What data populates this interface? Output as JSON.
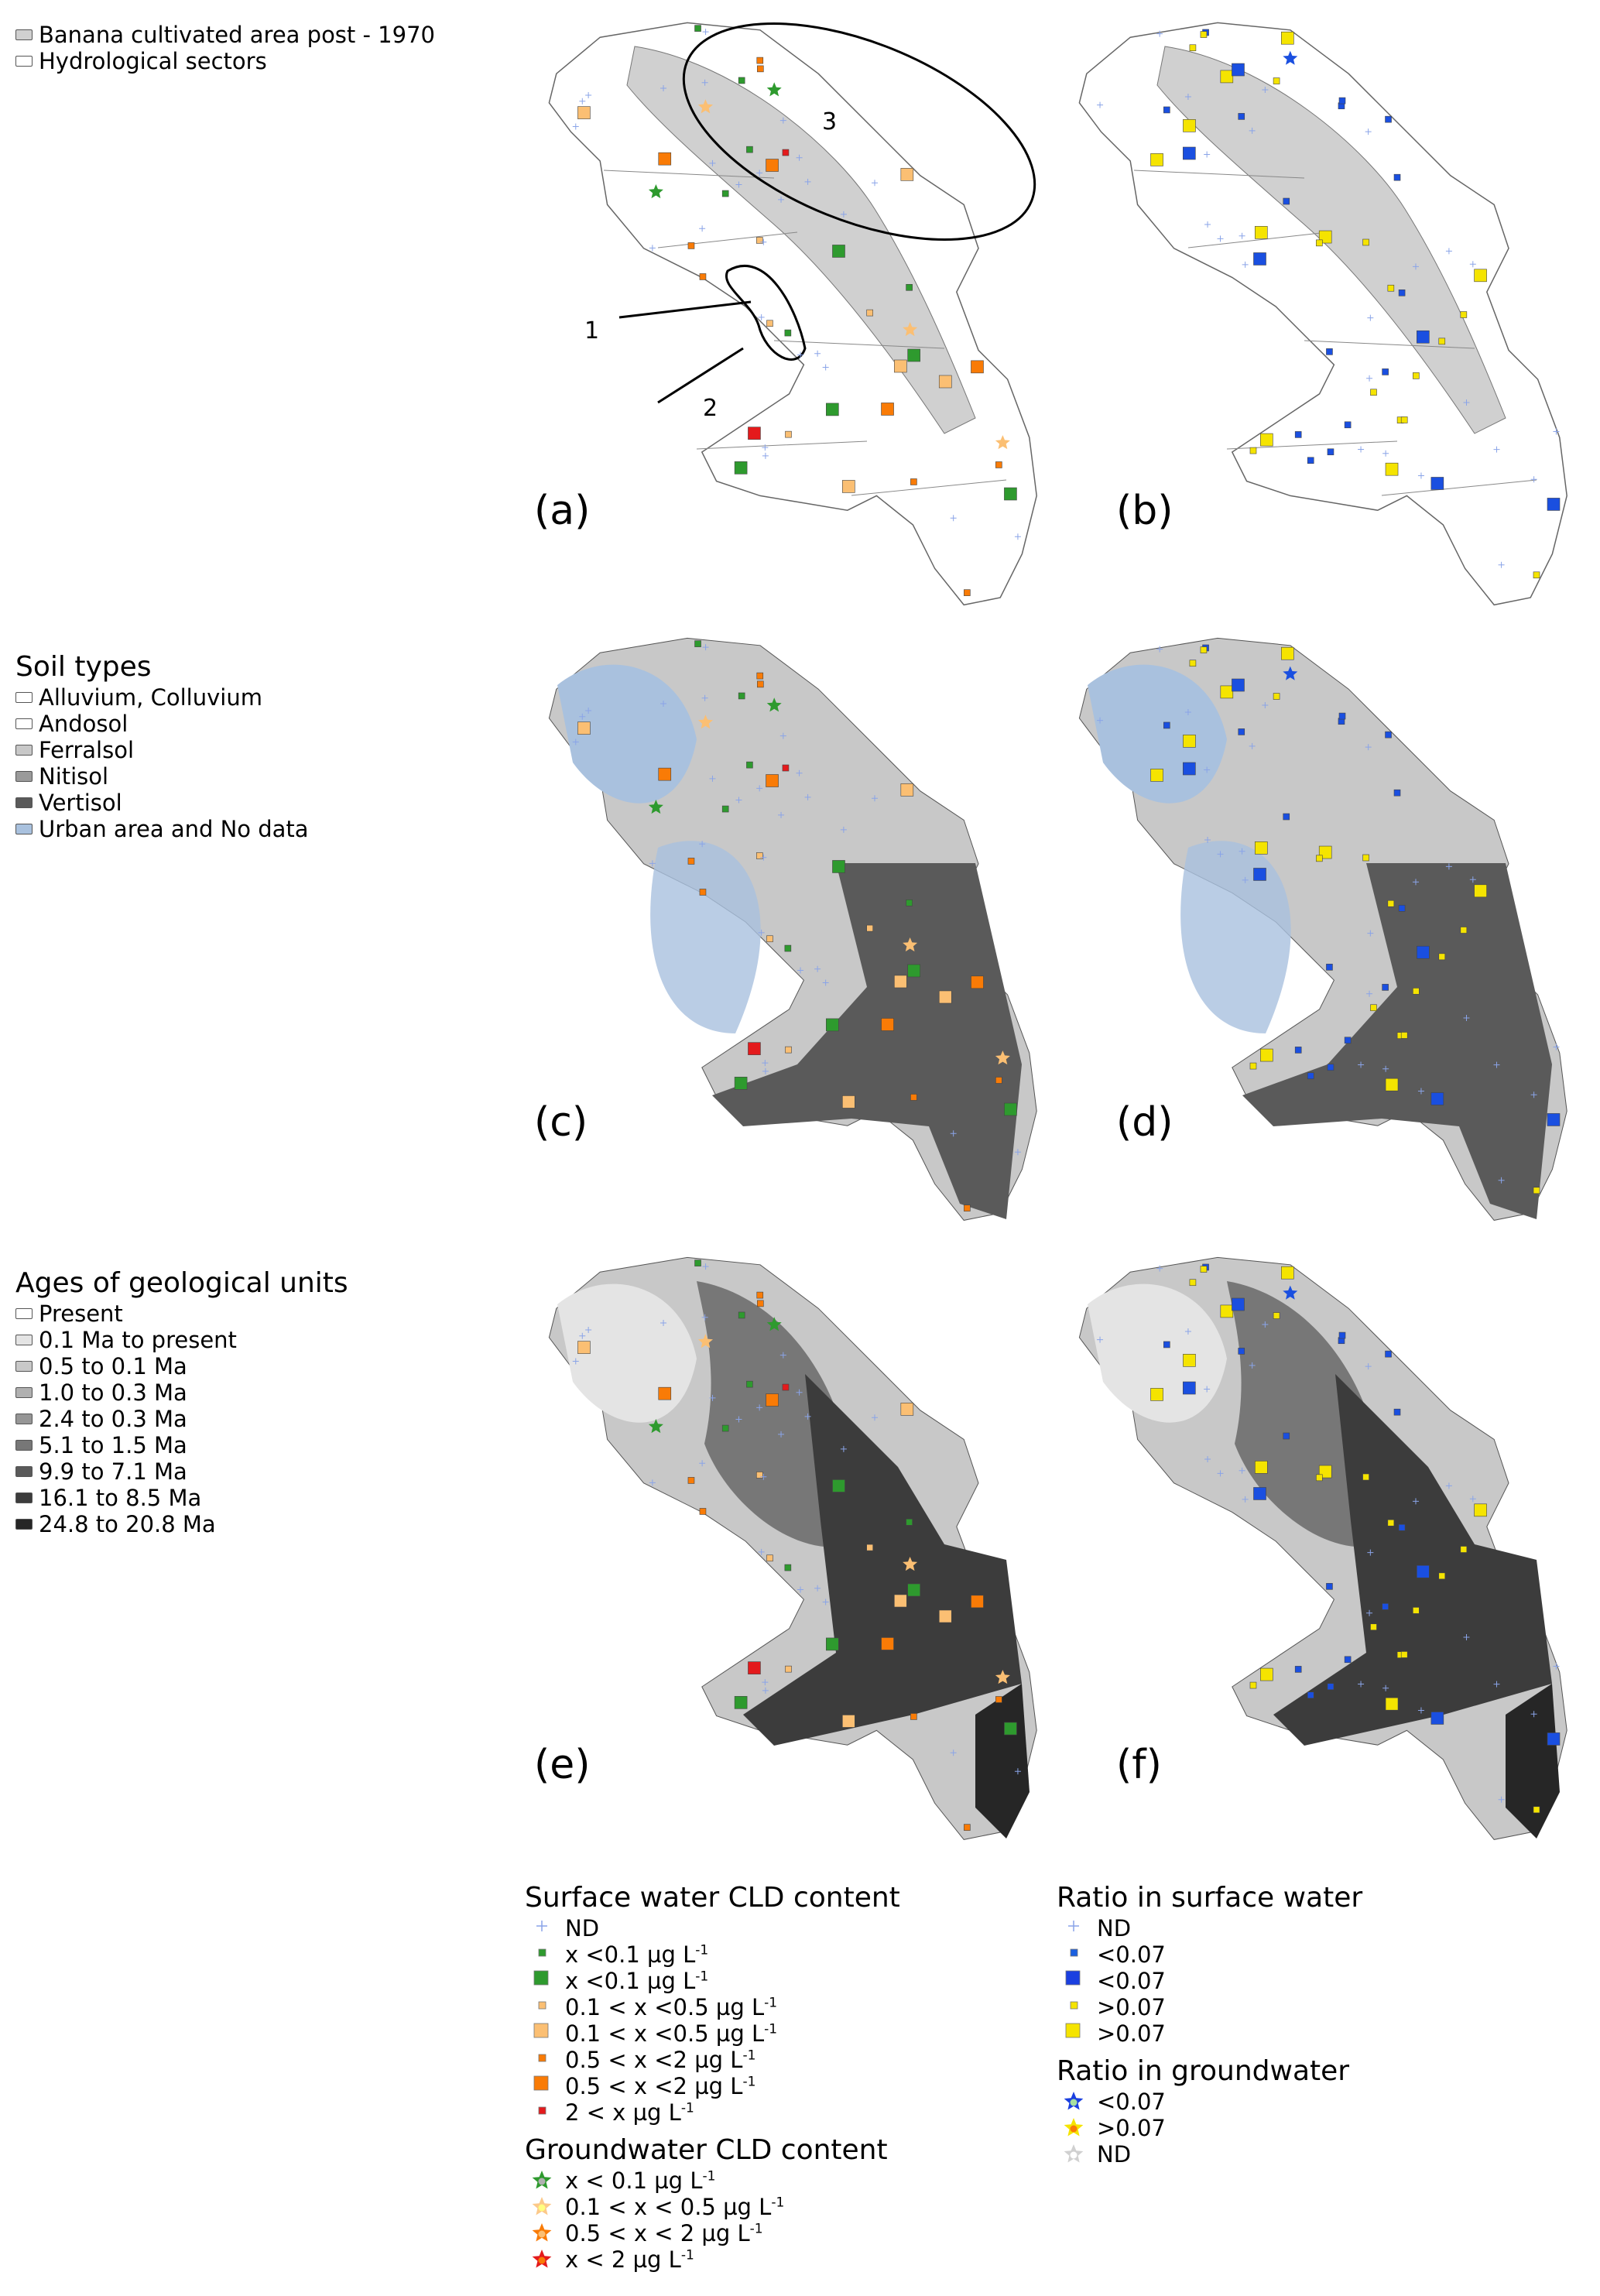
{
  "legend_top": {
    "items": [
      {
        "label": "Banana cultivated area post - 1970",
        "color": "#d0d0d0"
      },
      {
        "label": "Hydrological sectors",
        "color": "#ffffff"
      }
    ]
  },
  "legend_soil": {
    "title": "Soil types",
    "items": [
      {
        "label": "Alluvium, Colluvium",
        "color": "#ffffff"
      },
      {
        "label": "Andosol",
        "color": "#ffffff"
      },
      {
        "label": "Ferralsol",
        "color": "#c8c8c8"
      },
      {
        "label": "Nitisol",
        "color": "#9a9a9a"
      },
      {
        "label": "Vertisol",
        "color": "#5a5a5a"
      },
      {
        "label": "Urban area and No data",
        "color": "#a9c1de"
      }
    ]
  },
  "legend_geology": {
    "title": "Ages of geological units",
    "items": [
      {
        "label": "Present",
        "color": "#ffffff"
      },
      {
        "label": "0.1 Ma to present",
        "color": "#e4e4e4"
      },
      {
        "label": "0.5 to 0.1 Ma",
        "color": "#c8c8c8"
      },
      {
        "label": "1.0 to 0.3 Ma",
        "color": "#b0b0b0"
      },
      {
        "label": "2.4 to 0.3 Ma",
        "color": "#969696"
      },
      {
        "label": "5.1 to 1.5 Ma",
        "color": "#777777"
      },
      {
        "label": "9.9 to 7.1 Ma",
        "color": "#5a5a5a"
      },
      {
        "label": "16.1 to 8.5 Ma",
        "color": "#3c3c3c"
      },
      {
        "label": "24.8 to 20.8 Ma",
        "color": "#262626"
      }
    ]
  },
  "panels": [
    {
      "label": "(a)",
      "base": "hydro"
    },
    {
      "label": "(b)",
      "base": "hydro"
    },
    {
      "label": "(c)",
      "base": "soil"
    },
    {
      "label": "(d)",
      "base": "soil"
    },
    {
      "label": "(e)",
      "base": "geology"
    },
    {
      "label": "(f)",
      "base": "geology"
    }
  ],
  "annotations": [
    "1",
    "2",
    "3"
  ],
  "legend_surface": {
    "title": "Surface water CLD content",
    "items": [
      {
        "symbol": "plus",
        "color": "#8aa4e8",
        "text": "ND",
        "unit": ""
      },
      {
        "symbol": "square-small",
        "color": "#2e9a2e",
        "text": "x <0.1 µg L",
        "unit": "-1"
      },
      {
        "symbol": "square-large",
        "color": "#2e9a2e",
        "text": "x <0.1 µg L",
        "unit": "-1"
      },
      {
        "symbol": "square-small",
        "color": "#fbbf73",
        "text": "0.1 < x <0.5 µg L",
        "unit": "-1"
      },
      {
        "symbol": "square-large",
        "color": "#fbbf73",
        "text": "0.1 < x <0.5 µg L",
        "unit": "-1"
      },
      {
        "symbol": "square-small",
        "color": "#f97b06",
        "text": "0.5 < x <2 µg L",
        "unit": "-1"
      },
      {
        "symbol": "square-large",
        "color": "#f97b06",
        "text": "0.5 < x <2 µg L",
        "unit": "-1"
      },
      {
        "symbol": "square-small",
        "color": "#e41a1c",
        "text": "2 < x  µg L",
        "unit": "-1"
      }
    ]
  },
  "legend_ground": {
    "title": "Groundwater CLD content",
    "items": [
      {
        "color": "#2e9a2e",
        "center": "#b0b0b0",
        "text": "x < 0.1 µg L",
        "unit": "-1"
      },
      {
        "color": "#fcc98a",
        "center": "#ffff80",
        "text": "0.1 < x < 0.5 µg L",
        "unit": "-1"
      },
      {
        "color": "#f97b06",
        "center": "#fbbf73",
        "text": "0.5 < x < 2 µg L",
        "unit": "-1"
      },
      {
        "color": "#e41a1c",
        "center": "#f97b06",
        "text": "x < 2 µg L",
        "unit": "-1"
      }
    ]
  },
  "legend_ratio_surface": {
    "title": "Ratio in surface water",
    "items": [
      {
        "symbol": "plus",
        "color": "#8aa4e8",
        "text": "ND"
      },
      {
        "symbol": "square-small",
        "color": "#1a5fe0",
        "text": "<0.07"
      },
      {
        "symbol": "square-large",
        "color": "#1a3fe0",
        "text": "<0.07"
      },
      {
        "symbol": "square-small",
        "color": "#f5e400",
        "text": ">0.07"
      },
      {
        "symbol": "square-large",
        "color": "#f5e400",
        "text": ">0.07"
      }
    ]
  },
  "legend_ratio_ground": {
    "title": "Ratio in groundwater",
    "items": [
      {
        "color": "#1a3fe0",
        "center": "#a8e0a0",
        "text": "<0.07"
      },
      {
        "color": "#f5e400",
        "center": "#f97b06",
        "text": ">0.07"
      },
      {
        "color": "#d0d0d0",
        "center": "#ffffff",
        "text": "ND"
      }
    ]
  }
}
